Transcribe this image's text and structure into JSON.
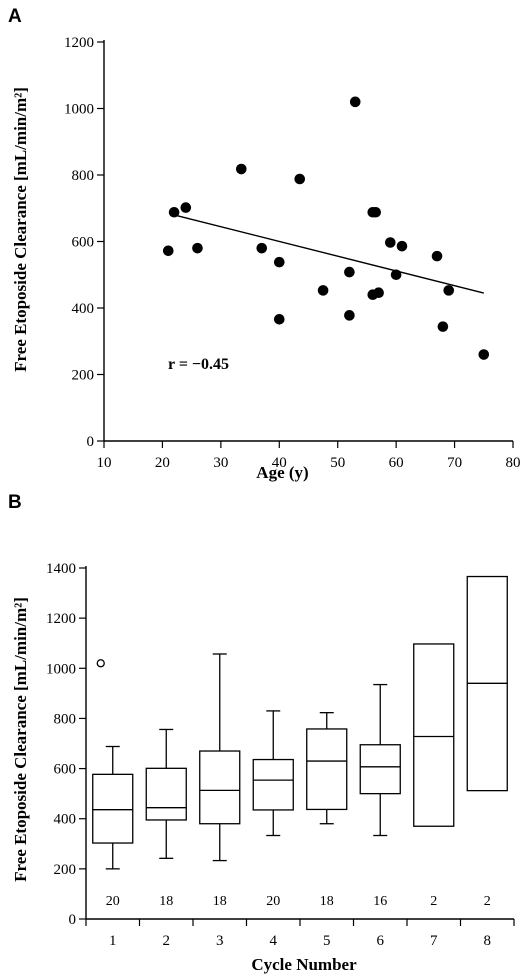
{
  "chart_data": [
    {
      "type": "scatter",
      "panel": "A",
      "xlabel": "Age (y)",
      "ylabel": "Free Etoposide Clearance [mL/min/m²]",
      "xlim": [
        10,
        80
      ],
      "ylim": [
        0,
        1200
      ],
      "xticks": [
        10,
        20,
        30,
        40,
        50,
        60,
        70,
        80
      ],
      "yticks": [
        0,
        200,
        400,
        600,
        800,
        1000,
        1200
      ],
      "points": [
        {
          "x": 21,
          "y": 572
        },
        {
          "x": 22,
          "y": 688
        },
        {
          "x": 24,
          "y": 702
        },
        {
          "x": 26,
          "y": 580
        },
        {
          "x": 33.5,
          "y": 818
        },
        {
          "x": 37,
          "y": 580
        },
        {
          "x": 40,
          "y": 538
        },
        {
          "x": 40,
          "y": 366
        },
        {
          "x": 43.5,
          "y": 788
        },
        {
          "x": 47.5,
          "y": 453
        },
        {
          "x": 52,
          "y": 508
        },
        {
          "x": 52,
          "y": 378
        },
        {
          "x": 53,
          "y": 1020
        },
        {
          "x": 56,
          "y": 688
        },
        {
          "x": 56.5,
          "y": 688
        },
        {
          "x": 56,
          "y": 440
        },
        {
          "x": 57,
          "y": 446
        },
        {
          "x": 59,
          "y": 597
        },
        {
          "x": 60,
          "y": 500
        },
        {
          "x": 61,
          "y": 586
        },
        {
          "x": 67,
          "y": 556
        },
        {
          "x": 68,
          "y": 344
        },
        {
          "x": 69,
          "y": 453
        },
        {
          "x": 75,
          "y": 260
        }
      ],
      "trendline": {
        "x": [
          22,
          75
        ],
        "y": [
          680,
          445
        ]
      },
      "annotation": "r = −0.45"
    },
    {
      "type": "box",
      "panel": "B",
      "xlabel": "Cycle Number",
      "ylabel": "Free Etoposide Clearance [mL/min/m²]",
      "ylim": [
        0,
        1400
      ],
      "yticks": [
        0,
        200,
        400,
        600,
        800,
        1000,
        1200,
        1400
      ],
      "categories": [
        "1",
        "2",
        "3",
        "4",
        "5",
        "6",
        "7",
        "8"
      ],
      "boxes": [
        {
          "min": 200,
          "q1": 303,
          "median": 436,
          "q3": 577,
          "max": 688,
          "outliers": [
            1020
          ],
          "n": "20"
        },
        {
          "min": 242,
          "q1": 395,
          "median": 444,
          "q3": 601,
          "max": 756,
          "outliers": [],
          "n": "18"
        },
        {
          "min": 233,
          "q1": 380,
          "median": 513,
          "q3": 670,
          "max": 1057,
          "outliers": [],
          "n": "18"
        },
        {
          "min": 333,
          "q1": 435,
          "median": 554,
          "q3": 636,
          "max": 830,
          "outliers": [],
          "n": "20"
        },
        {
          "min": 380,
          "q1": 437,
          "median": 630,
          "q3": 758,
          "max": 823,
          "outliers": [],
          "n": "18"
        },
        {
          "min": 333,
          "q1": 500,
          "median": 607,
          "q3": 695,
          "max": 935,
          "outliers": [],
          "n": "16"
        },
        {
          "min": 370,
          "q1": 370,
          "median": 728,
          "q3": 1097,
          "max": 1097,
          "outliers": [],
          "n": "2"
        },
        {
          "min": 512,
          "q1": 512,
          "median": 940,
          "q3": 1366,
          "max": 1366,
          "outliers": [],
          "n": "2"
        }
      ]
    }
  ]
}
